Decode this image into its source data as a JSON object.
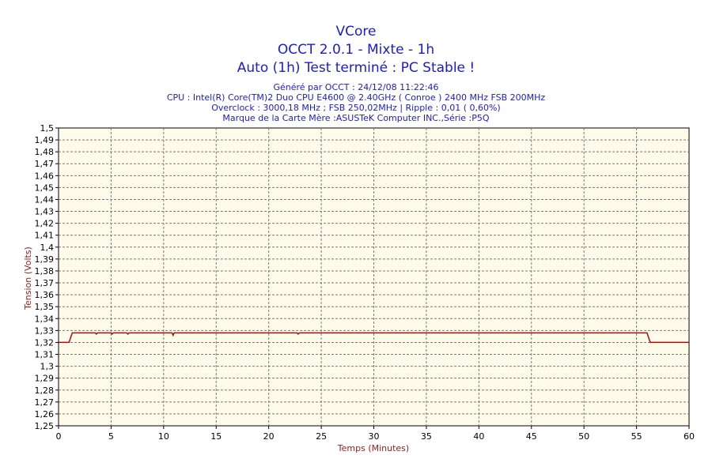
{
  "chart_data": {
    "type": "line",
    "title": "VCore",
    "subtitle1": "OCCT 2.0.1 - Mixte - 1h",
    "subtitle2": "Auto (1h) Test terminé : PC Stable !",
    "info_lines": [
      "Généré par OCCT : 24/12/08 11:22:46",
      "CPU : Intel(R) Core(TM)2 Duo CPU E4600 @ 2.40GHz ( Conroe ) 2400 MHz FSB 200MHz",
      "Overclock : 3000,18 MHz ; FSB 250,02MHz | Ripple : 0,01 ( 0,60%)",
      "Marque de la Carte Mère :ASUSTeK Computer INC.,Série :P5Q"
    ],
    "xlabel": "Temps (Minutes)",
    "ylabel": "Tension (Volts)",
    "xlim": [
      0,
      60
    ],
    "ylim": [
      1.25,
      1.5
    ],
    "x_ticks": [
      "0",
      "5",
      "10",
      "15",
      "20",
      "25",
      "30",
      "35",
      "40",
      "45",
      "50",
      "55",
      "60"
    ],
    "y_ticks": [
      "1,25",
      "1,26",
      "1,27",
      "1,28",
      "1,29",
      "1,3",
      "1,31",
      "1,32",
      "1,33",
      "1,34",
      "1,35",
      "1,36",
      "1,37",
      "1,38",
      "1,39",
      "1,4",
      "1,41",
      "1,42",
      "1,43",
      "1,44",
      "1,45",
      "1,46",
      "1,47",
      "1,48",
      "1,49",
      "1,5"
    ],
    "grid": true,
    "series": [
      {
        "color": "#a01010",
        "x": [
          0,
          1.0,
          1.3,
          3.5,
          3.6,
          3.7,
          5.0,
          5.1,
          5.2,
          6.5,
          6.6,
          6.7,
          10.8,
          10.9,
          11.0,
          22.7,
          22.8,
          22.9,
          56.0,
          56.3,
          60
        ],
        "y": [
          1.32,
          1.32,
          1.328,
          1.328,
          1.327,
          1.328,
          1.328,
          1.327,
          1.328,
          1.328,
          1.327,
          1.328,
          1.328,
          1.326,
          1.328,
          1.328,
          1.327,
          1.328,
          1.328,
          1.32,
          1.32
        ]
      }
    ],
    "colors": {
      "title": "#1a1adc",
      "plot_background": "#fffbeb",
      "grid": "#7a7a7a",
      "line": "#a01010",
      "axis_label": "#a01c1c"
    }
  }
}
